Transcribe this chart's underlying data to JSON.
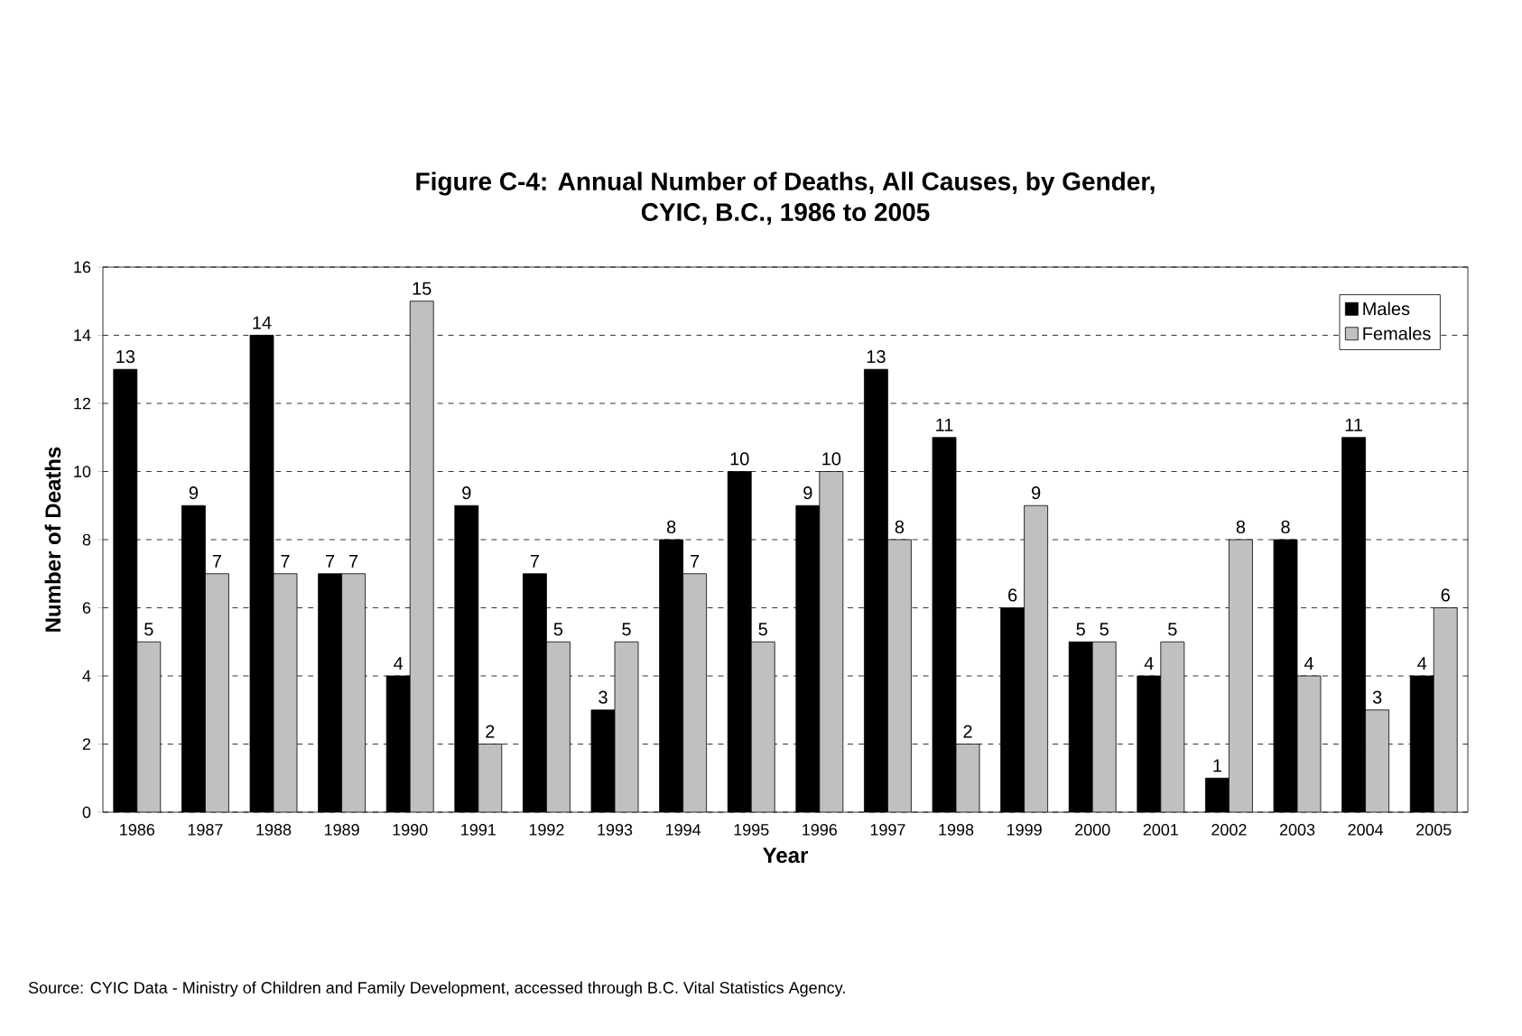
{
  "chart_data": {
    "type": "bar",
    "title": "Figure C-4:  Annual Number of Deaths, All Causes, by Gender,\nCYIC, B.C., 1986 to 2005",
    "xlabel": "Year",
    "ylabel": "Number of Deaths",
    "categories": [
      "1986",
      "1987",
      "1988",
      "1989",
      "1990",
      "1991",
      "1992",
      "1993",
      "1994",
      "1995",
      "1996",
      "1997",
      "1998",
      "1999",
      "2000",
      "2001",
      "2002",
      "2003",
      "2004",
      "2005"
    ],
    "series": [
      {
        "name": "Males",
        "color": "#000000",
        "values": [
          13,
          9,
          14,
          7,
          4,
          9,
          7,
          3,
          8,
          10,
          9,
          13,
          11,
          6,
          5,
          4,
          1,
          8,
          11,
          4
        ]
      },
      {
        "name": "Females",
        "color": "#c0c0c0",
        "values": [
          5,
          7,
          7,
          7,
          15,
          2,
          5,
          5,
          7,
          5,
          10,
          8,
          2,
          9,
          5,
          5,
          8,
          4,
          3,
          6
        ]
      }
    ],
    "ylim": [
      0,
      16
    ],
    "yticks": [
      0,
      2,
      4,
      6,
      8,
      10,
      12,
      14,
      16
    ],
    "grid": "y",
    "legend": "top right",
    "data_labels": true,
    "annotations": [
      "Source:  CYIC Data - Ministry of Children and Family Development, accessed through B.C. Vital Statistics Agency."
    ]
  }
}
